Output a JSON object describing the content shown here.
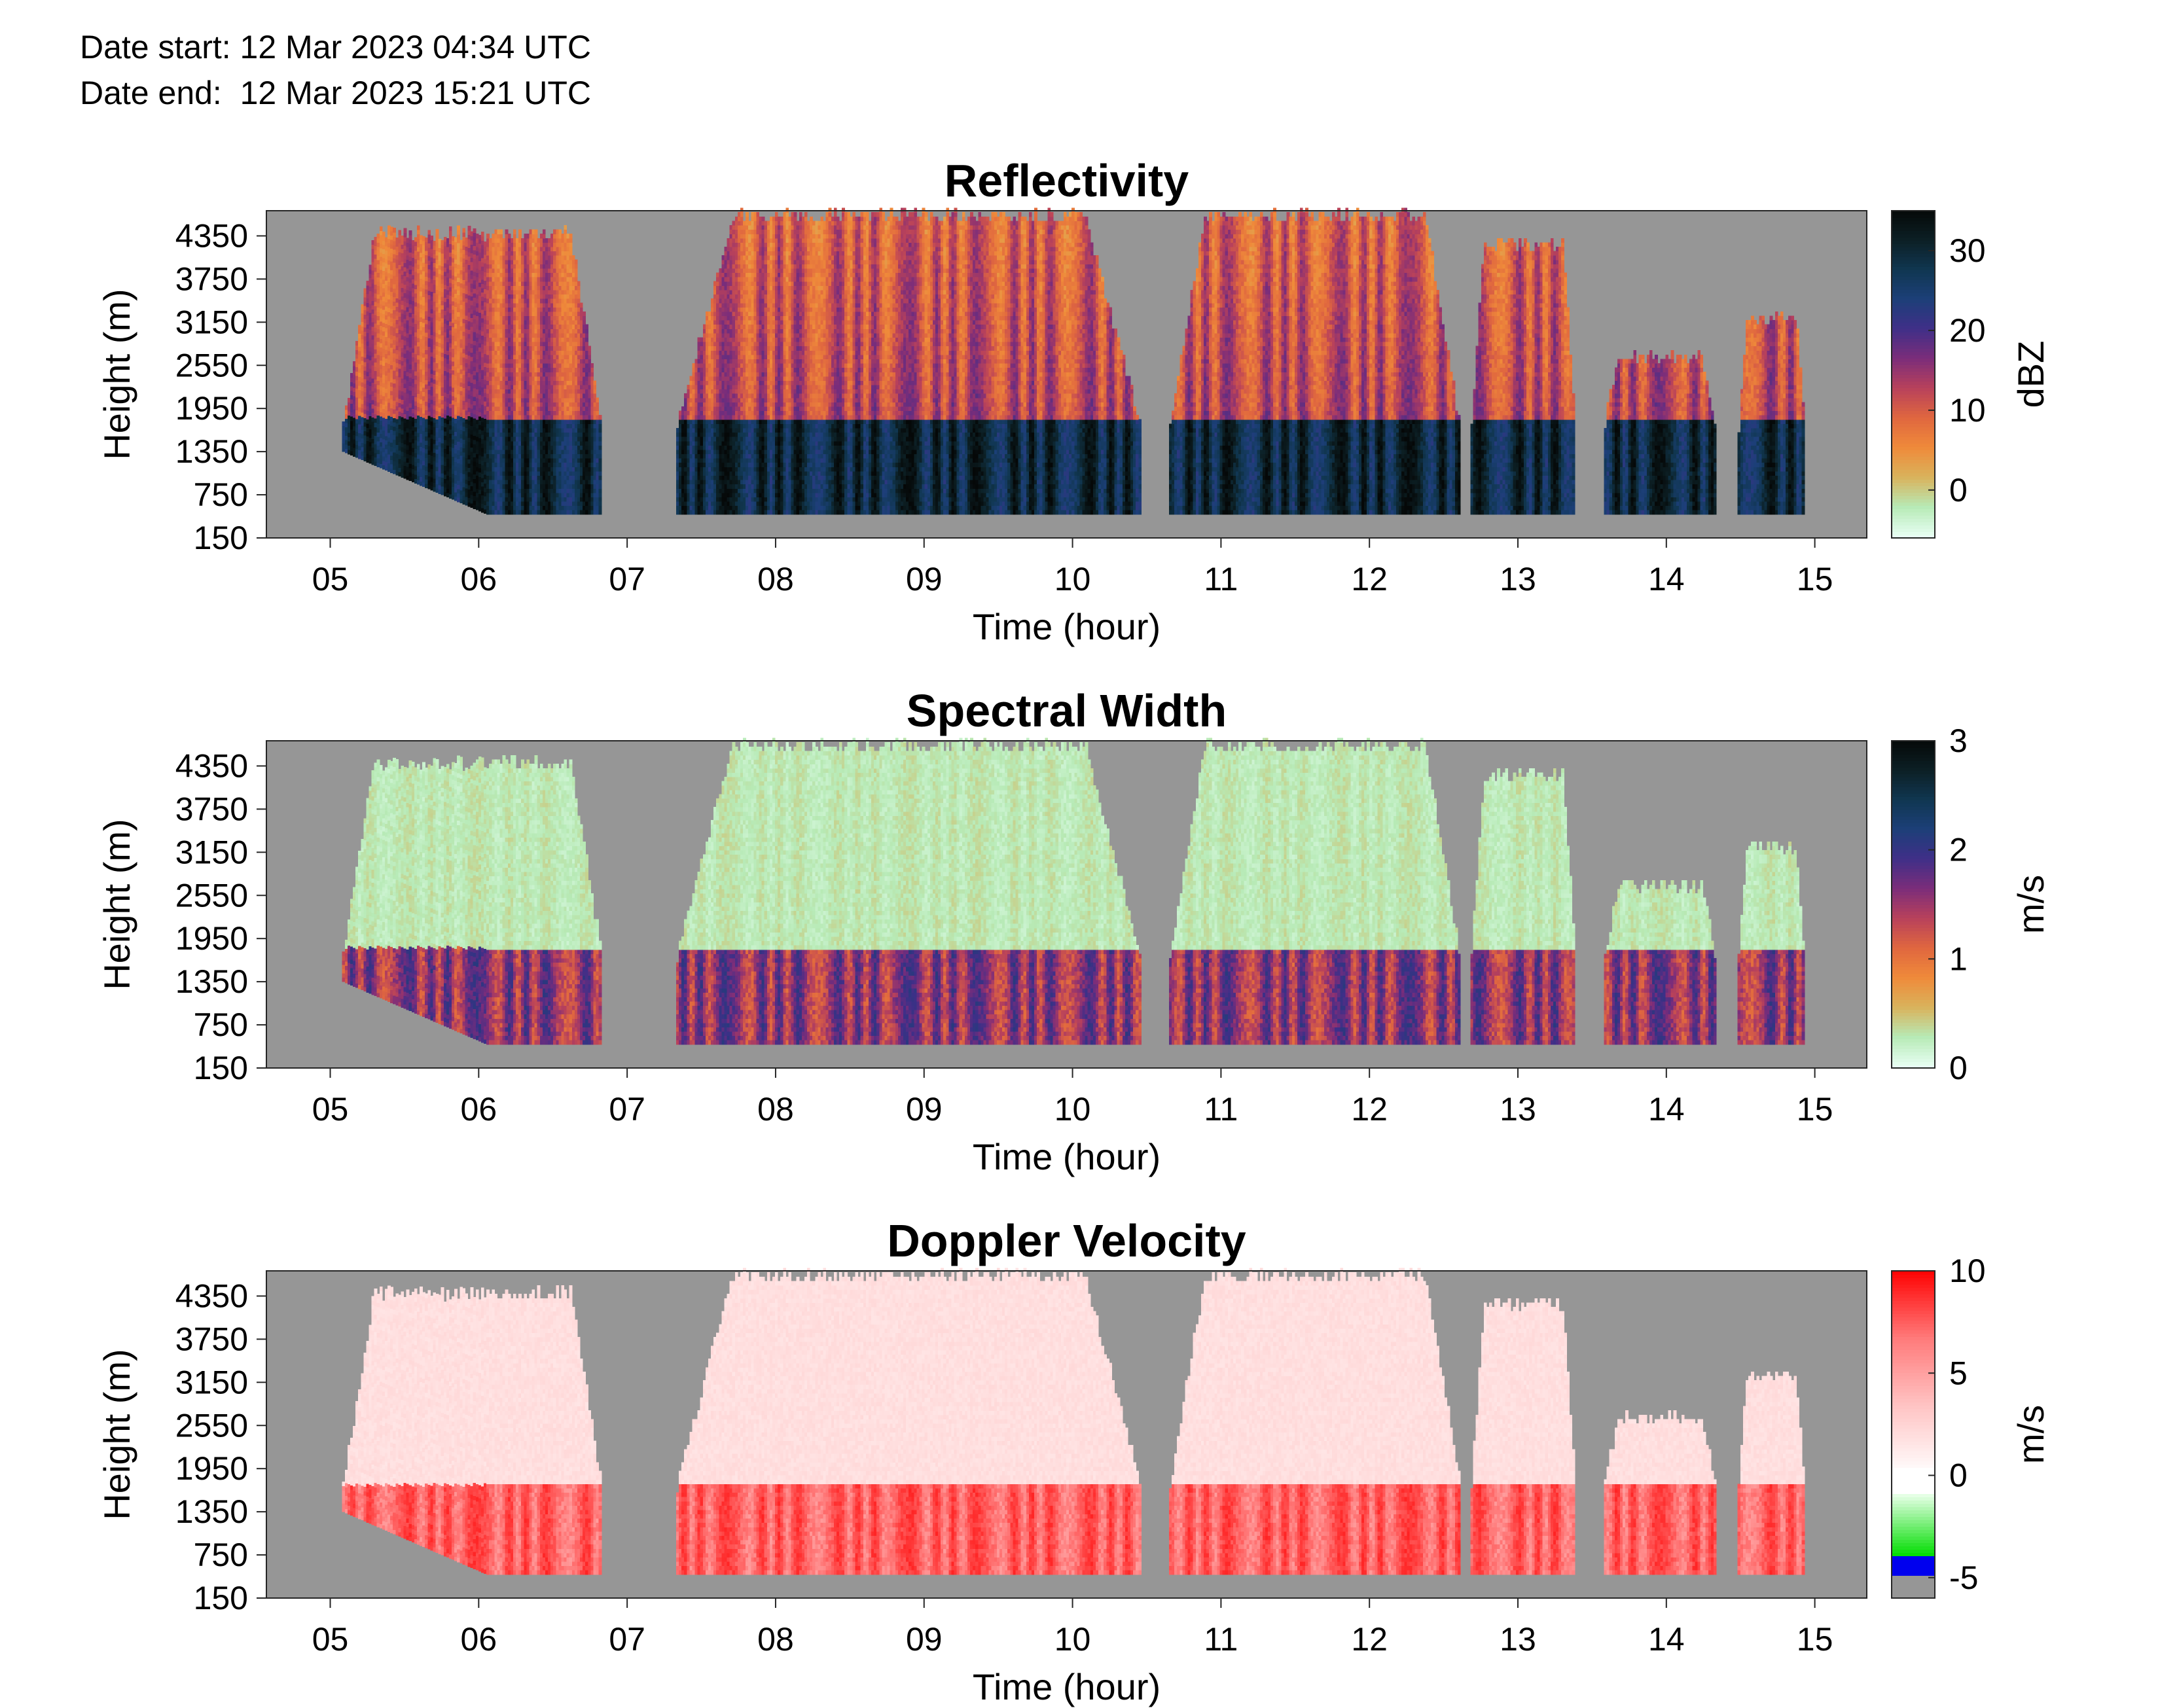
{
  "header": {
    "date_start": "Date start: 12 Mar 2023 04:34 UTC",
    "date_end": "Date end:  12 Mar 2023 15:21 UTC"
  },
  "colors": {
    "no_data": "#969696",
    "reflectivity_scale": [
      "#e8fff4",
      "#b7eab6",
      "#d9b35c",
      "#ef8a3a",
      "#e0673f",
      "#b8415b",
      "#7b2d7a",
      "#3f2f88",
      "#1c3f78",
      "#103650",
      "#0c1f24",
      "#050808"
    ],
    "spectral_width_scale": [
      "#e8fff4",
      "#b7eab6",
      "#d9b35c",
      "#ef8a3a",
      "#e0673f",
      "#b8415b",
      "#7b2d7a",
      "#3f2f88",
      "#1c3f78",
      "#103650",
      "#0c1f24",
      "#050808"
    ],
    "doppler_scale": [
      "#969696",
      "#0000ee",
      "#00cc00",
      "#ffffff",
      "#ff9a9a",
      "#ff0000"
    ]
  },
  "chart_data": [
    {
      "type": "heatmap",
      "title": "Reflectivity",
      "xlabel": "Time (hour)",
      "ylabel": "Height (m)",
      "x_ticks": [
        "05",
        "06",
        "07",
        "08",
        "09",
        "10",
        "11",
        "12",
        "13",
        "14",
        "15"
      ],
      "y_ticks": [
        "150",
        "750",
        "1350",
        "1950",
        "2550",
        "3150",
        "3750",
        "4350"
      ],
      "xlim": [
        4.57,
        15.35
      ],
      "ylim": [
        150,
        4700
      ],
      "colorbar": {
        "label": "dBZ",
        "ticks": [
          "0",
          "10",
          "20",
          "30"
        ],
        "range": [
          -6,
          35
        ]
      },
      "echo_segments": [
        {
          "start": 5.08,
          "end": 6.82,
          "top": 4460
        },
        {
          "start": 7.33,
          "end": 10.45,
          "top": 4700
        },
        {
          "start": 10.65,
          "end": 12.6,
          "top": 4700
        },
        {
          "start": 12.68,
          "end": 13.38,
          "top": 4300
        },
        {
          "start": 13.58,
          "end": 14.32,
          "top": 2750
        },
        {
          "start": 14.48,
          "end": 14.92,
          "top": 3300
        }
      ]
    },
    {
      "type": "heatmap",
      "title": "Spectral Width",
      "xlabel": "Time (hour)",
      "ylabel": "Height (m)",
      "x_ticks": [
        "05",
        "06",
        "07",
        "08",
        "09",
        "10",
        "11",
        "12",
        "13",
        "14",
        "15"
      ],
      "y_ticks": [
        "150",
        "750",
        "1350",
        "1950",
        "2550",
        "3150",
        "3750",
        "4350"
      ],
      "xlim": [
        4.57,
        15.35
      ],
      "ylim": [
        150,
        4700
      ],
      "colorbar": {
        "label": "m/s",
        "ticks": [
          "0",
          "1",
          "2",
          "3"
        ],
        "range": [
          0,
          3
        ]
      }
    },
    {
      "type": "heatmap",
      "title": "Doppler Velocity",
      "xlabel": "Time (hour)",
      "ylabel": "Height (m)",
      "x_ticks": [
        "05",
        "06",
        "07",
        "08",
        "09",
        "10",
        "11",
        "12",
        "13",
        "14",
        "15"
      ],
      "y_ticks": [
        "150",
        "750",
        "1350",
        "1950",
        "2550",
        "3150",
        "3750",
        "4350"
      ],
      "xlim": [
        4.57,
        15.35
      ],
      "ylim": [
        150,
        4700
      ],
      "colorbar": {
        "label": "m/s",
        "ticks": [
          "-5",
          "0",
          "5",
          "10"
        ],
        "range": [
          -6,
          10
        ]
      }
    }
  ]
}
